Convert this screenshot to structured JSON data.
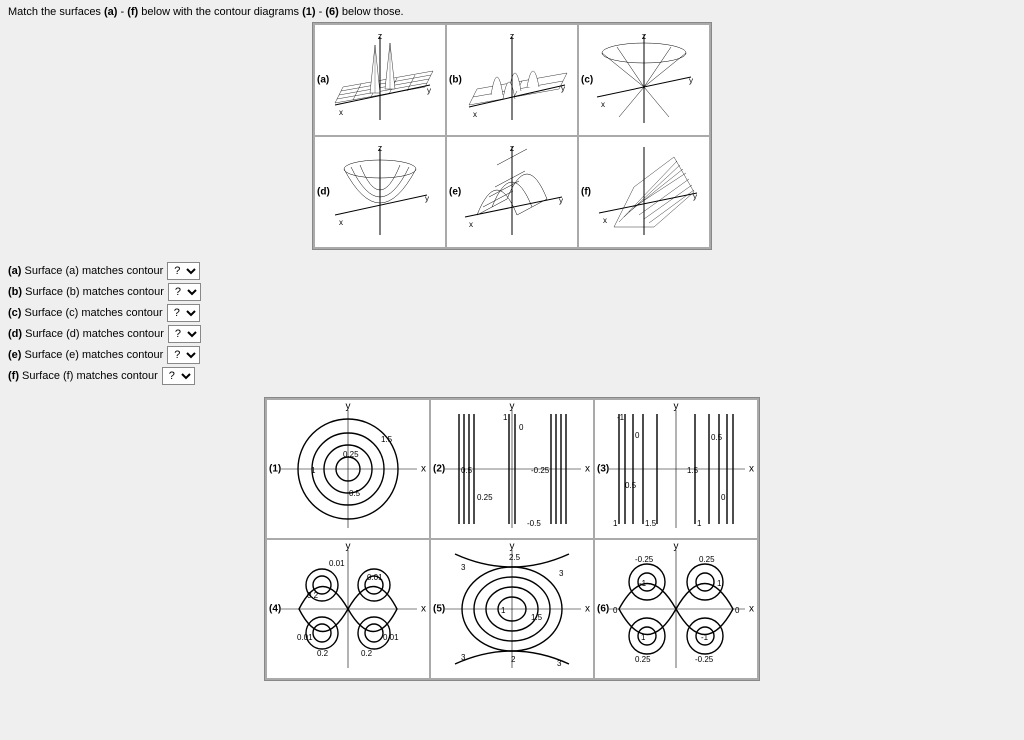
{
  "instruction_pre": "Match the surfaces ",
  "instruction_mid1": " - ",
  "instruction_mid2": " below with the contour diagrams ",
  "instruction_mid3": " - ",
  "instruction_post": " below those.",
  "bold_a": "(a)",
  "bold_f": "(f)",
  "bold_1": "(1)",
  "bold_6": "(6)",
  "surfaces": {
    "labels": [
      "(a)",
      "(b)",
      "(c)",
      "(d)",
      "(e)",
      "(f)"
    ],
    "z": "z",
    "x": "x",
    "y": "y"
  },
  "questions": [
    {
      "bold": "(a)",
      "text": " Surface (a) matches contour"
    },
    {
      "bold": "(b)",
      "text": " Surface (b) matches contour"
    },
    {
      "bold": "(c)",
      "text": " Surface (c) matches contour"
    },
    {
      "bold": "(d)",
      "text": " Surface (d) matches contour"
    },
    {
      "bold": "(e)",
      "text": " Surface (e) matches contour"
    },
    {
      "bold": "(f)",
      "text": " Surface (f) matches contour"
    }
  ],
  "dropdown_placeholder": "?",
  "dropdown_options": [
    "?",
    "1",
    "2",
    "3",
    "4",
    "5",
    "6"
  ],
  "contours": {
    "labels": [
      "(1)",
      "(2)",
      "(3)",
      "(4)",
      "(5)",
      "(6)"
    ],
    "x": "x",
    "y": "y",
    "c1_vals": [
      "1",
      "0.25",
      "0.5",
      "1.5"
    ],
    "c2_vals": [
      "1",
      "0",
      "0.5",
      "-0.25",
      "0.25",
      "-0.5"
    ],
    "c3_vals": [
      "-1",
      "0",
      "0.5",
      "1",
      "1.5",
      "0.5",
      "1",
      "0"
    ],
    "c4_vals": [
      "0.01",
      "0.01",
      "0.2",
      "0.01",
      "0.2",
      "0.01",
      "0.2"
    ],
    "c5_vals": [
      "2.5",
      "3",
      "3",
      "1",
      "1.5",
      "3",
      "2",
      "3"
    ],
    "c6_vals": [
      "-0.25",
      "0.25",
      "-1",
      "1",
      "0",
      "0",
      "1",
      "-1",
      "0.25",
      "-0.25"
    ]
  },
  "style": {
    "bg": "#efefef",
    "ink": "#000000",
    "grid_border": "#888888",
    "stroke_w_thin": 0.8,
    "stroke_w": 1.4
  }
}
